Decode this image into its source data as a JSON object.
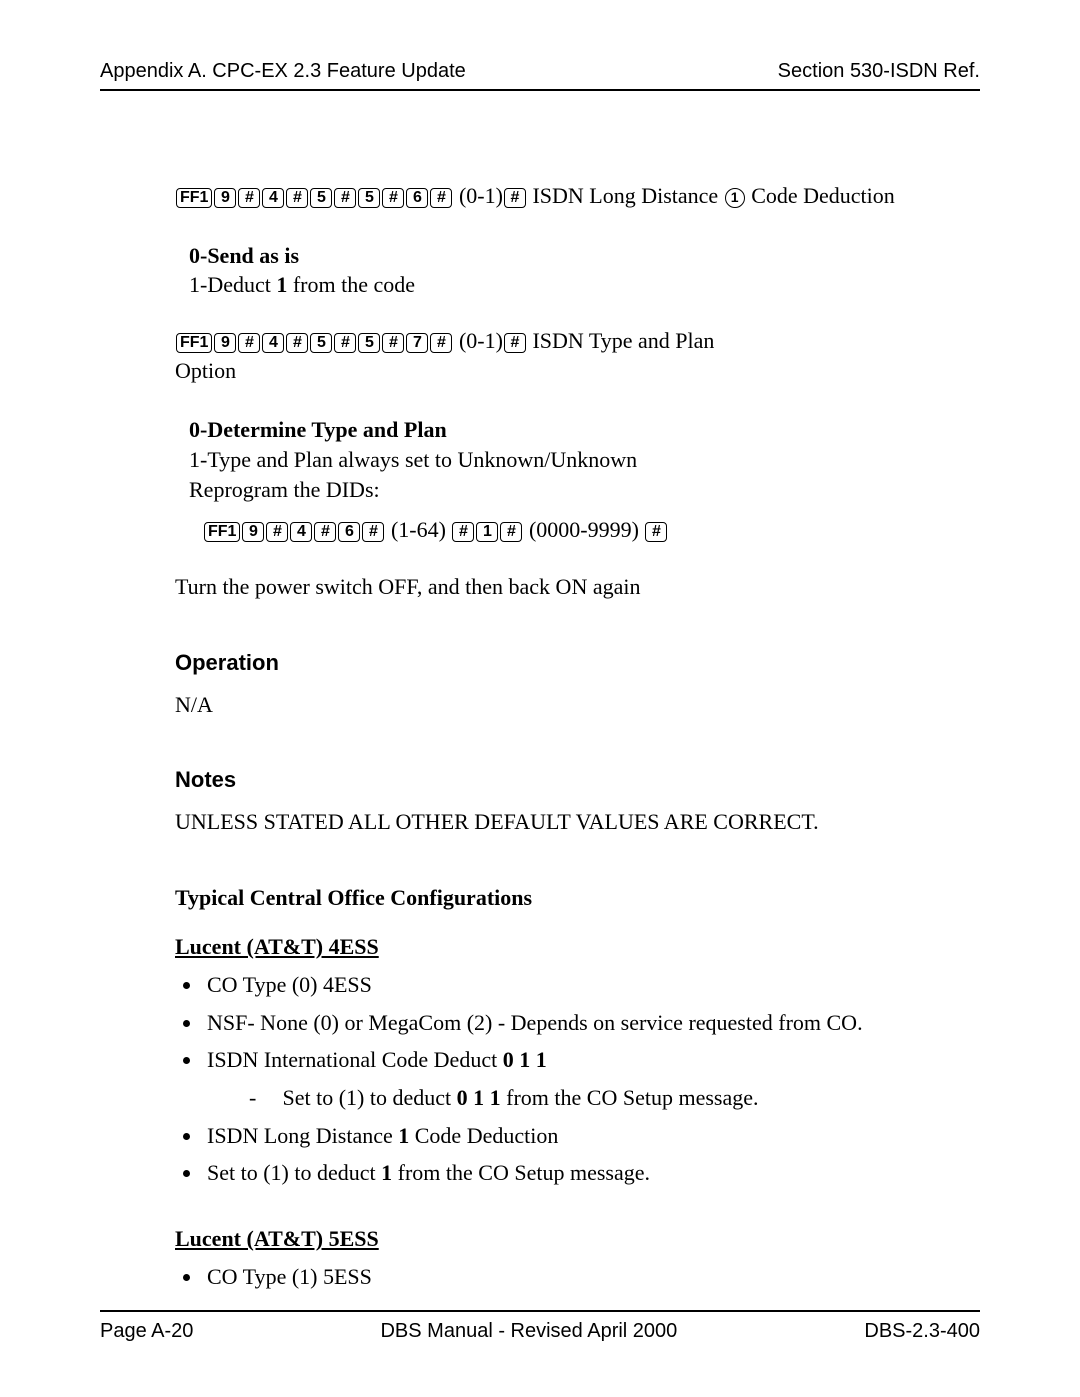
{
  "header": {
    "left": "Appendix A. CPC-EX 2.3 Feature Update",
    "right": "Section 530-ISDN Ref."
  },
  "line1": {
    "keys": [
      "FF1",
      "9",
      "#",
      "4",
      "#",
      "5",
      "#",
      "5",
      "#",
      "6",
      "#"
    ],
    "range": "(0-1)",
    "hash": "#",
    "text_a": " ISDN Long Distance ",
    "circled": "1",
    "text_b": " Code Deduction"
  },
  "block1": {
    "l1": "0-Send as is",
    "l2a": "1-Deduct ",
    "l2b": "1",
    "l2c": "   from the code"
  },
  "line2": {
    "keys": [
      "FF1",
      "9",
      "#",
      "4",
      "#",
      "5",
      "#",
      "5",
      "#",
      "7",
      "#"
    ],
    "range": "(0-1)",
    "hash": "#",
    "text": " ISDN Type and Plan"
  },
  "line2_option": "Option",
  "block2": {
    "l1": "0-Determine Type and Plan",
    "l2": "1-Type and Plan always set to Unknown/Unknown",
    "l3": "Reprogram the DIDs:"
  },
  "line3": {
    "keys1": [
      "FF1",
      "9",
      "#",
      "4",
      "#",
      "6",
      "#"
    ],
    "range1": "(1-64)",
    "keys2": [
      "#",
      "1",
      "#"
    ],
    "range2": "(0000-9999)",
    "keys3": [
      "#"
    ]
  },
  "power": "Turn the power switch OFF, and then back ON again",
  "operation": {
    "title": "Operation",
    "body": "N/A"
  },
  "notes": {
    "title": "Notes",
    "body": "UNLESS STATED ALL OTHER DEFAULT VALUES ARE CORRECT."
  },
  "tcoc": {
    "title": "Typical Central Office Configurations"
  },
  "ess4": {
    "title": "Lucent (AT&T) 4ESS",
    "b1": "CO Type (0)  4ESS",
    "b2": "NSF- None (0) or MegaCom (2) - Depends on service requested from CO.",
    "b3a": "ISDN International Code Deduct   ",
    "b3b": "0 1 1",
    "b3_sub_a": "Set to (1) to deduct  ",
    "b3_sub_b": "0 1 1",
    "b3_sub_c": "   from the CO Setup message.",
    "b4a": "ISDN Long Distance  ",
    "b4b": "1",
    "b4c": "  Code Deduction",
    "b5a": "Set to (1) to deduct  ",
    "b5b": "1",
    "b5c": "  from the CO Setup message."
  },
  "ess5": {
    "title": "Lucent (AT&T) 5ESS",
    "b1": "CO Type (1)  5ESS"
  },
  "footer": {
    "left": "Page A-20",
    "center": "DBS Manual - Revised April 2000",
    "right": "DBS-2.3-400"
  }
}
